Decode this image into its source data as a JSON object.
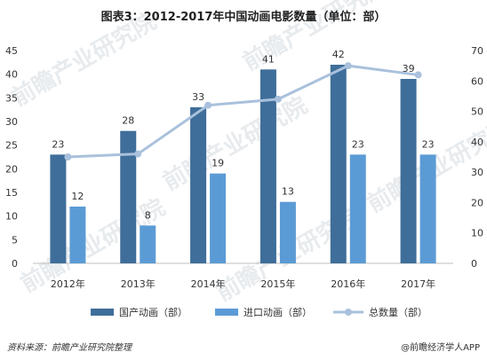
{
  "chart_data": {
    "type": "bar",
    "title": "图表3：2012-2017年中国动画电影数量（单位：部）",
    "categories": [
      "2012年",
      "2013年",
      "2014年",
      "2015年",
      "2016年",
      "2017年"
    ],
    "series": [
      {
        "name": "国产动画（部）",
        "type": "bar",
        "axis": "left",
        "color": "#3f6e9a",
        "values": [
          23,
          28,
          33,
          41,
          42,
          39
        ]
      },
      {
        "name": "进口动画（部）",
        "type": "bar",
        "axis": "left",
        "color": "#5b9bd5",
        "values": [
          12,
          8,
          19,
          13,
          23,
          23
        ]
      },
      {
        "name": "总数量（部）",
        "type": "line",
        "axis": "right",
        "color": "#a9c1dc",
        "values": [
          35,
          36,
          52,
          54,
          65,
          62
        ]
      }
    ],
    "ylim_left": [
      0,
      45
    ],
    "yticks_left": [
      "0",
      "5",
      "10",
      "15",
      "20",
      "25",
      "30",
      "35",
      "40",
      "45"
    ],
    "ylim_right": [
      0,
      70
    ],
    "yticks_right": [
      "0",
      "10",
      "20",
      "30",
      "40",
      "50",
      "60",
      "70"
    ],
    "grid": false,
    "legend_position": "bottom"
  },
  "footer": {
    "source": "资料来源：前瞻产业研究院整理",
    "brand": "@前瞻经济学人APP"
  },
  "watermark": "前瞻产业研究院"
}
